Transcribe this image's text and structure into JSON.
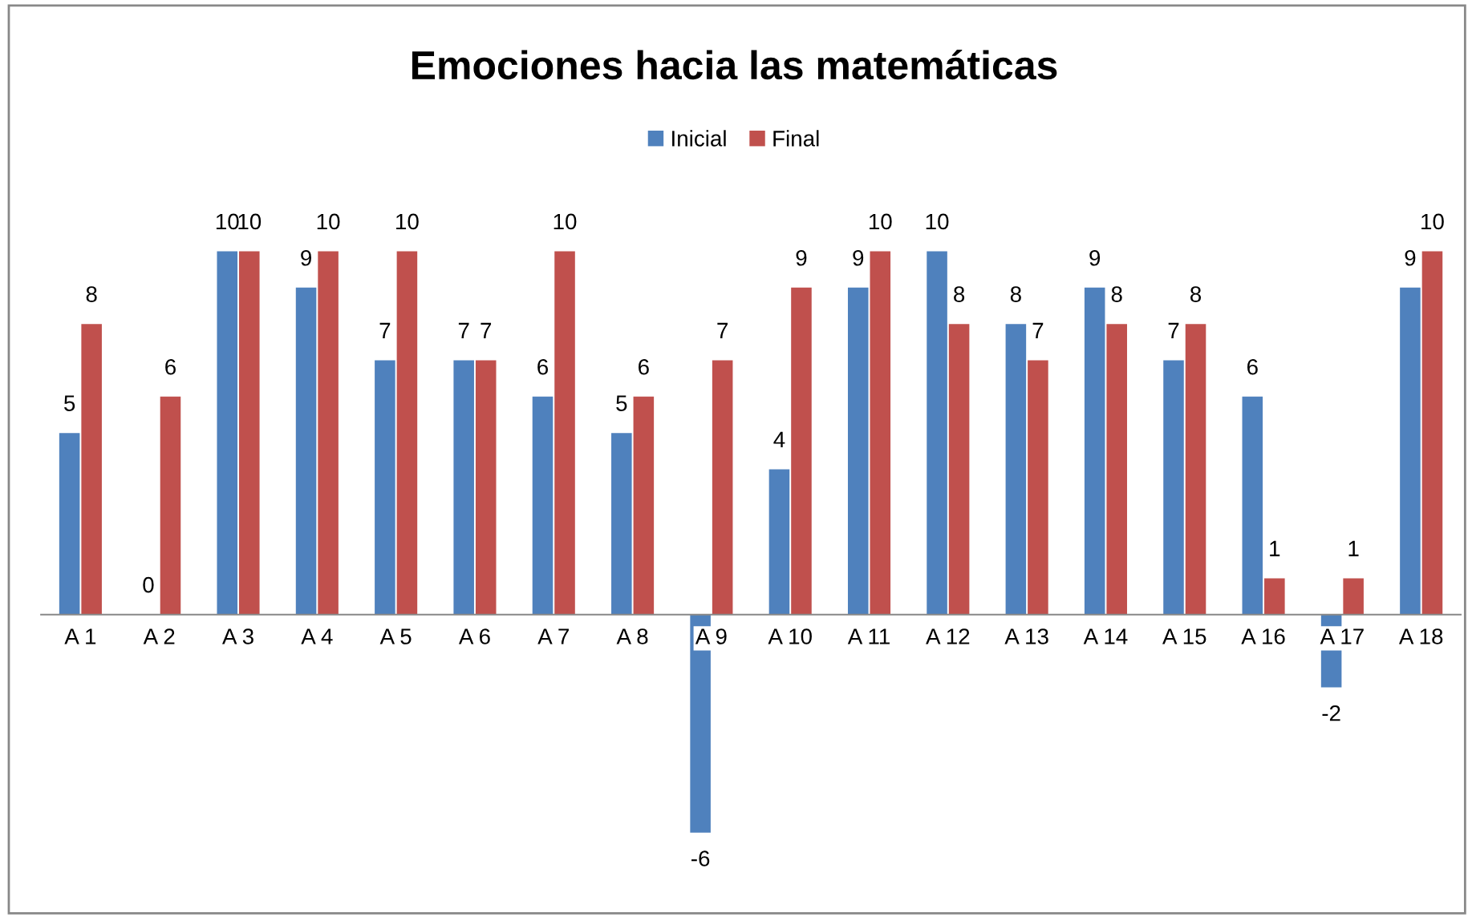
{
  "chart_data": {
    "type": "bar",
    "title": "Emociones hacia las matemáticas",
    "categories": [
      "A 1",
      "A 2",
      "A 3",
      "A 4",
      "A 5",
      "A 6",
      "A 7",
      "A 8",
      "A 9",
      "A 10",
      "A 11",
      "A 12",
      "A 13",
      "A 14",
      "A 15",
      "A 16",
      "A 17",
      "A 18"
    ],
    "series": [
      {
        "name": "Inicial",
        "color": "#4f81bd",
        "values": [
          5,
          0,
          10,
          9,
          7,
          7,
          6,
          5,
          -6,
          4,
          9,
          10,
          8,
          9,
          7,
          6,
          -2,
          9
        ]
      },
      {
        "name": "Final",
        "color": "#c0504d",
        "values": [
          8,
          6,
          10,
          10,
          10,
          7,
          10,
          6,
          7,
          9,
          10,
          8,
          7,
          8,
          8,
          1,
          1,
          10
        ]
      }
    ],
    "data_labels": true,
    "legend": "top",
    "grid": false
  }
}
